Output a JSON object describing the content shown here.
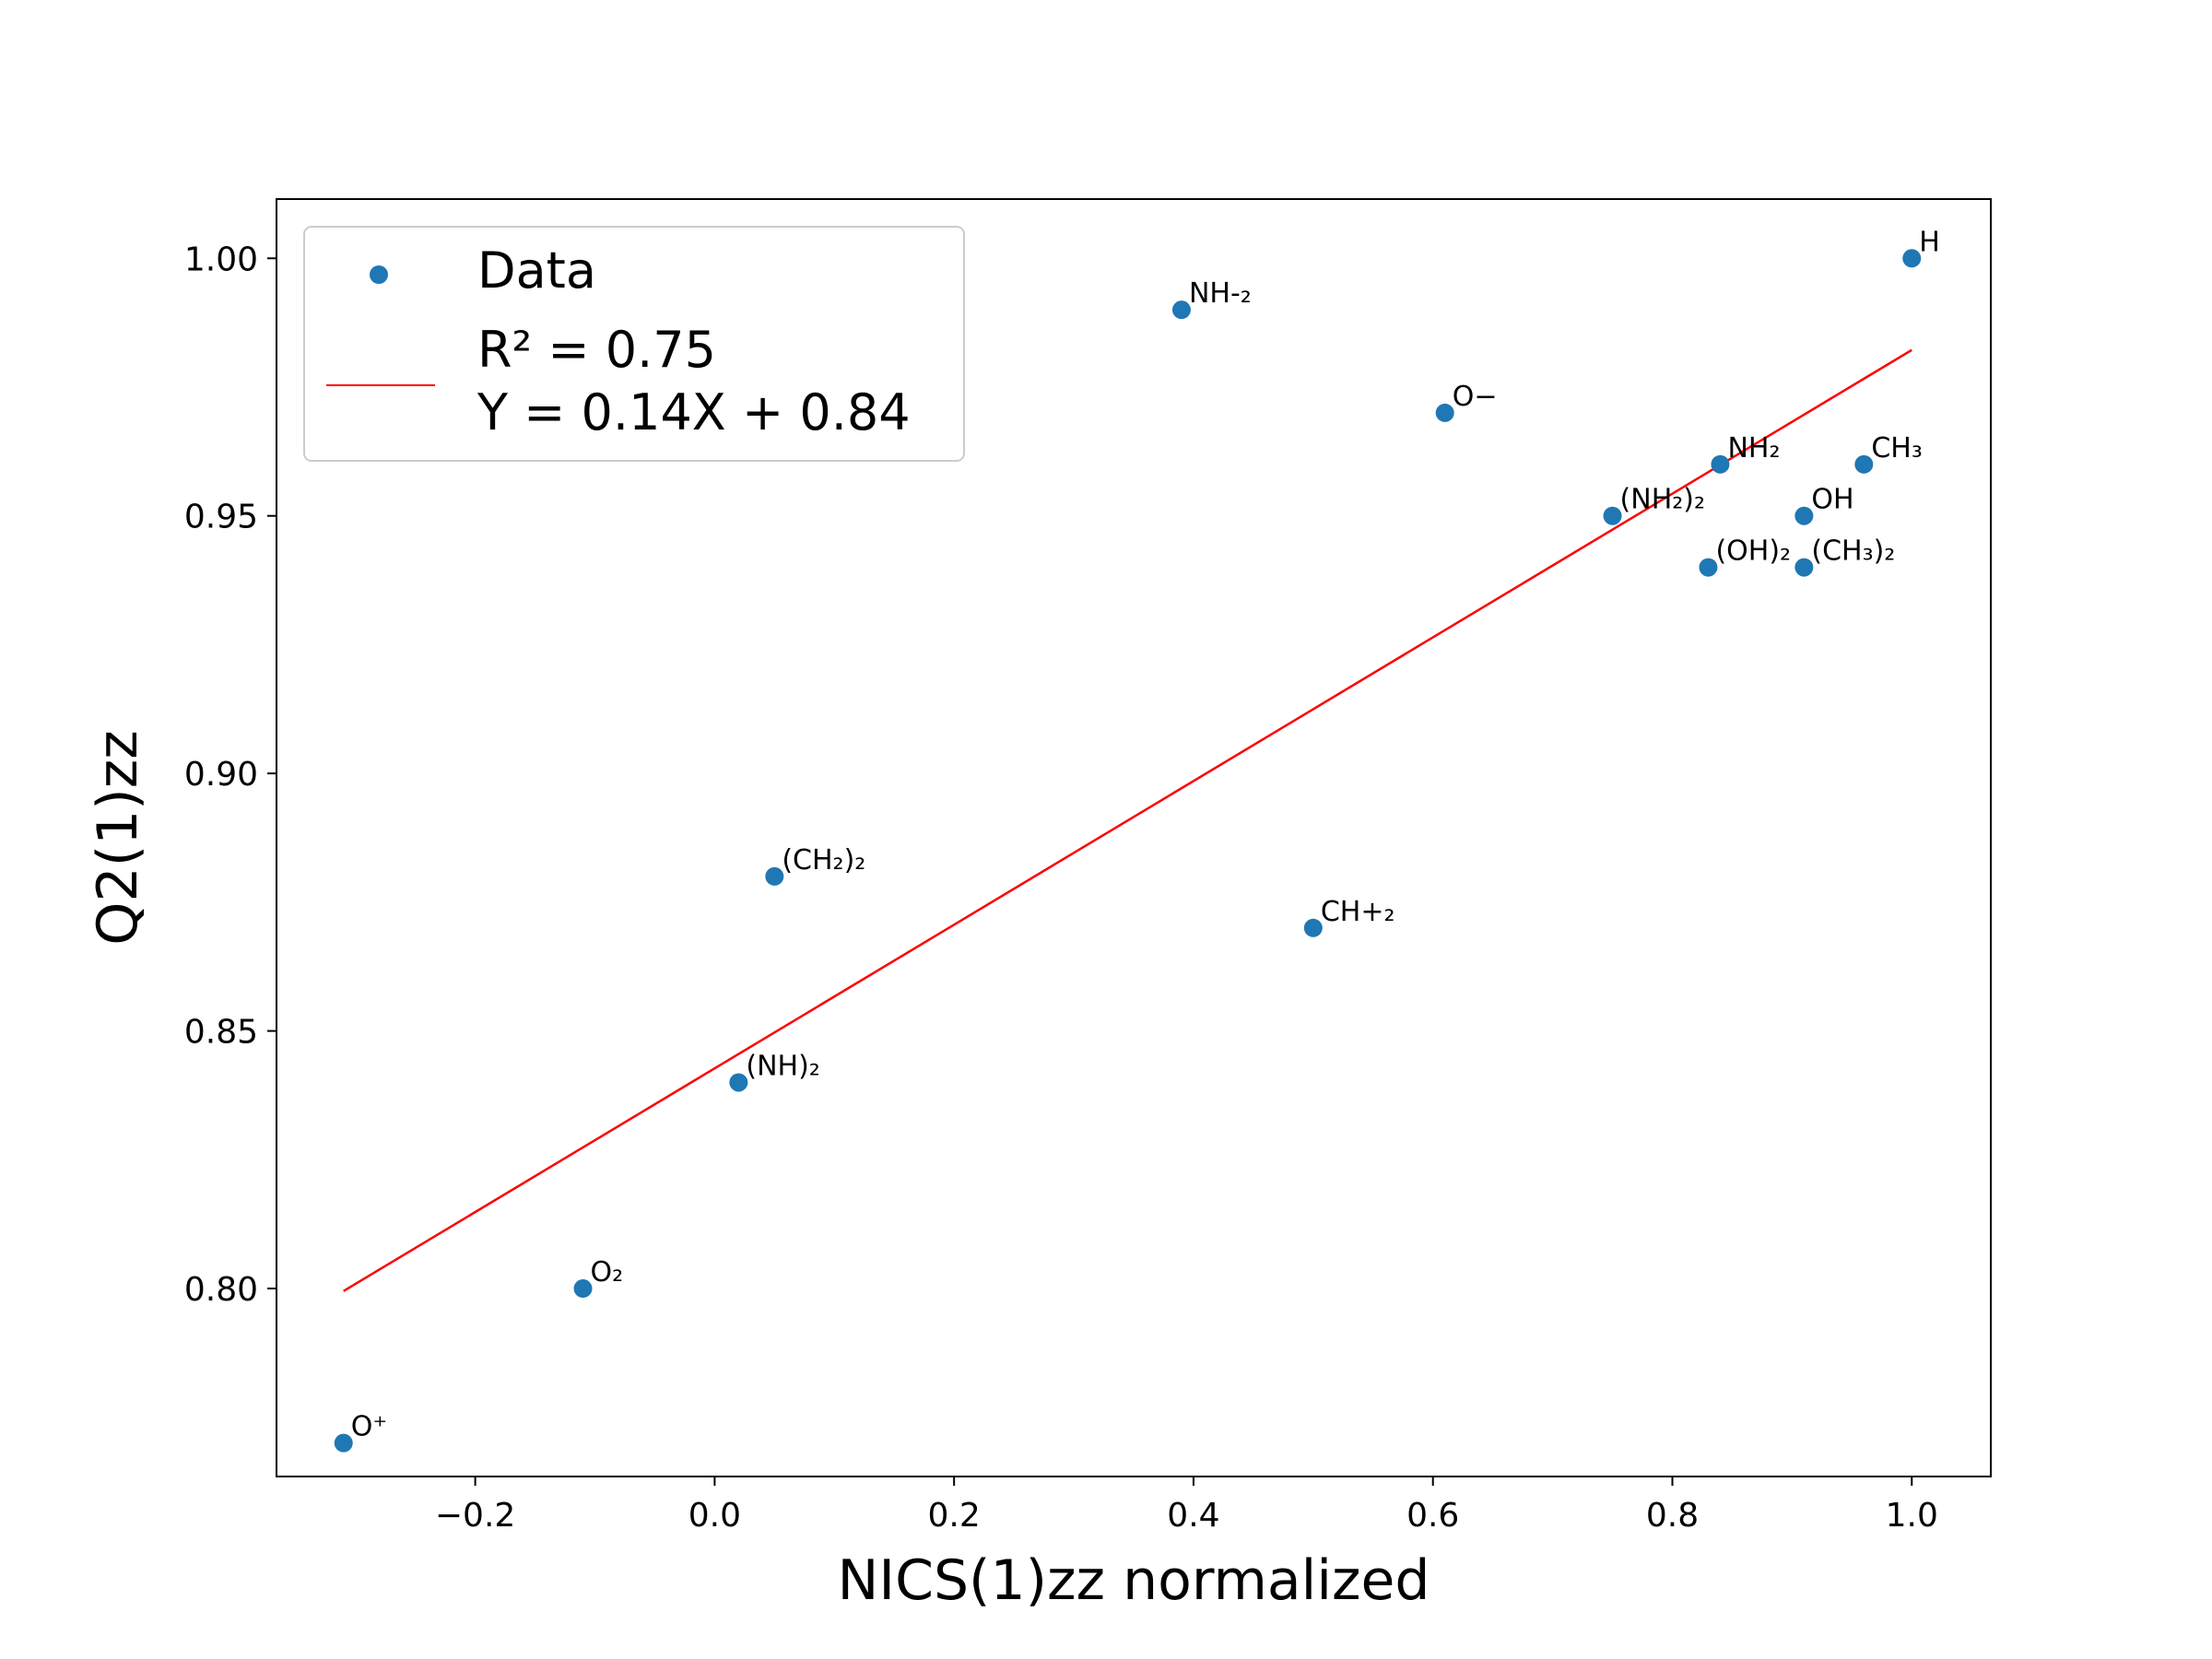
{
  "chart_data": {
    "type": "scatter",
    "title": "",
    "xlabel": "NICS(1)zz normalized",
    "ylabel": "Q2(1)zz",
    "xlim": [
      -0.366,
      1.066
    ],
    "ylim": [
      0.7635,
      1.0115
    ],
    "xticks": [
      -0.2,
      0.0,
      0.2,
      0.4,
      0.6,
      0.8,
      1.0
    ],
    "xtick_labels": [
      "−0.2",
      "0.0",
      "0.2",
      "0.4",
      "0.6",
      "0.8",
      "1.0"
    ],
    "yticks": [
      0.8,
      0.85,
      0.9,
      0.95,
      1.0
    ],
    "ytick_labels": [
      "0.80",
      "0.85",
      "0.90",
      "0.95",
      "1.00"
    ],
    "grid": false,
    "legend_position": "top-left",
    "series": [
      {
        "name": "Data",
        "kind": "scatter",
        "color": "#1f77b4",
        "points": [
          {
            "x": 1.0,
            "y": 1.0,
            "label": "H"
          },
          {
            "x": 0.39,
            "y": 0.99,
            "label": "NH-₂"
          },
          {
            "x": 0.61,
            "y": 0.97,
            "label": "O−"
          },
          {
            "x": 0.84,
            "y": 0.96,
            "label": "NH₂"
          },
          {
            "x": 0.96,
            "y": 0.96,
            "label": "CH₃"
          },
          {
            "x": 0.75,
            "y": 0.95,
            "label": "(NH₂)₂"
          },
          {
            "x": 0.91,
            "y": 0.95,
            "label": "OH"
          },
          {
            "x": 0.83,
            "y": 0.94,
            "label": "(OH)₂"
          },
          {
            "x": 0.91,
            "y": 0.94,
            "label": "(CH₃)₂"
          },
          {
            "x": 0.05,
            "y": 0.88,
            "label": "(CH₂)₂"
          },
          {
            "x": 0.5,
            "y": 0.87,
            "label": "CH+₂"
          },
          {
            "x": 0.02,
            "y": 0.84,
            "label": "(NH)₂"
          },
          {
            "x": -0.11,
            "y": 0.8,
            "label": "O₂"
          },
          {
            "x": -0.31,
            "y": 0.77,
            "label": "O⁺"
          }
        ]
      },
      {
        "name": "R² = 0.75\nY = 0.14X + 0.84",
        "legend_lines": [
          "R² = 0.75",
          "Y = 0.14X + 0.84"
        ],
        "kind": "line",
        "color": "#ff0000",
        "x": [
          -0.31,
          1.0
        ],
        "y": [
          0.7995,
          0.9822
        ]
      }
    ]
  }
}
